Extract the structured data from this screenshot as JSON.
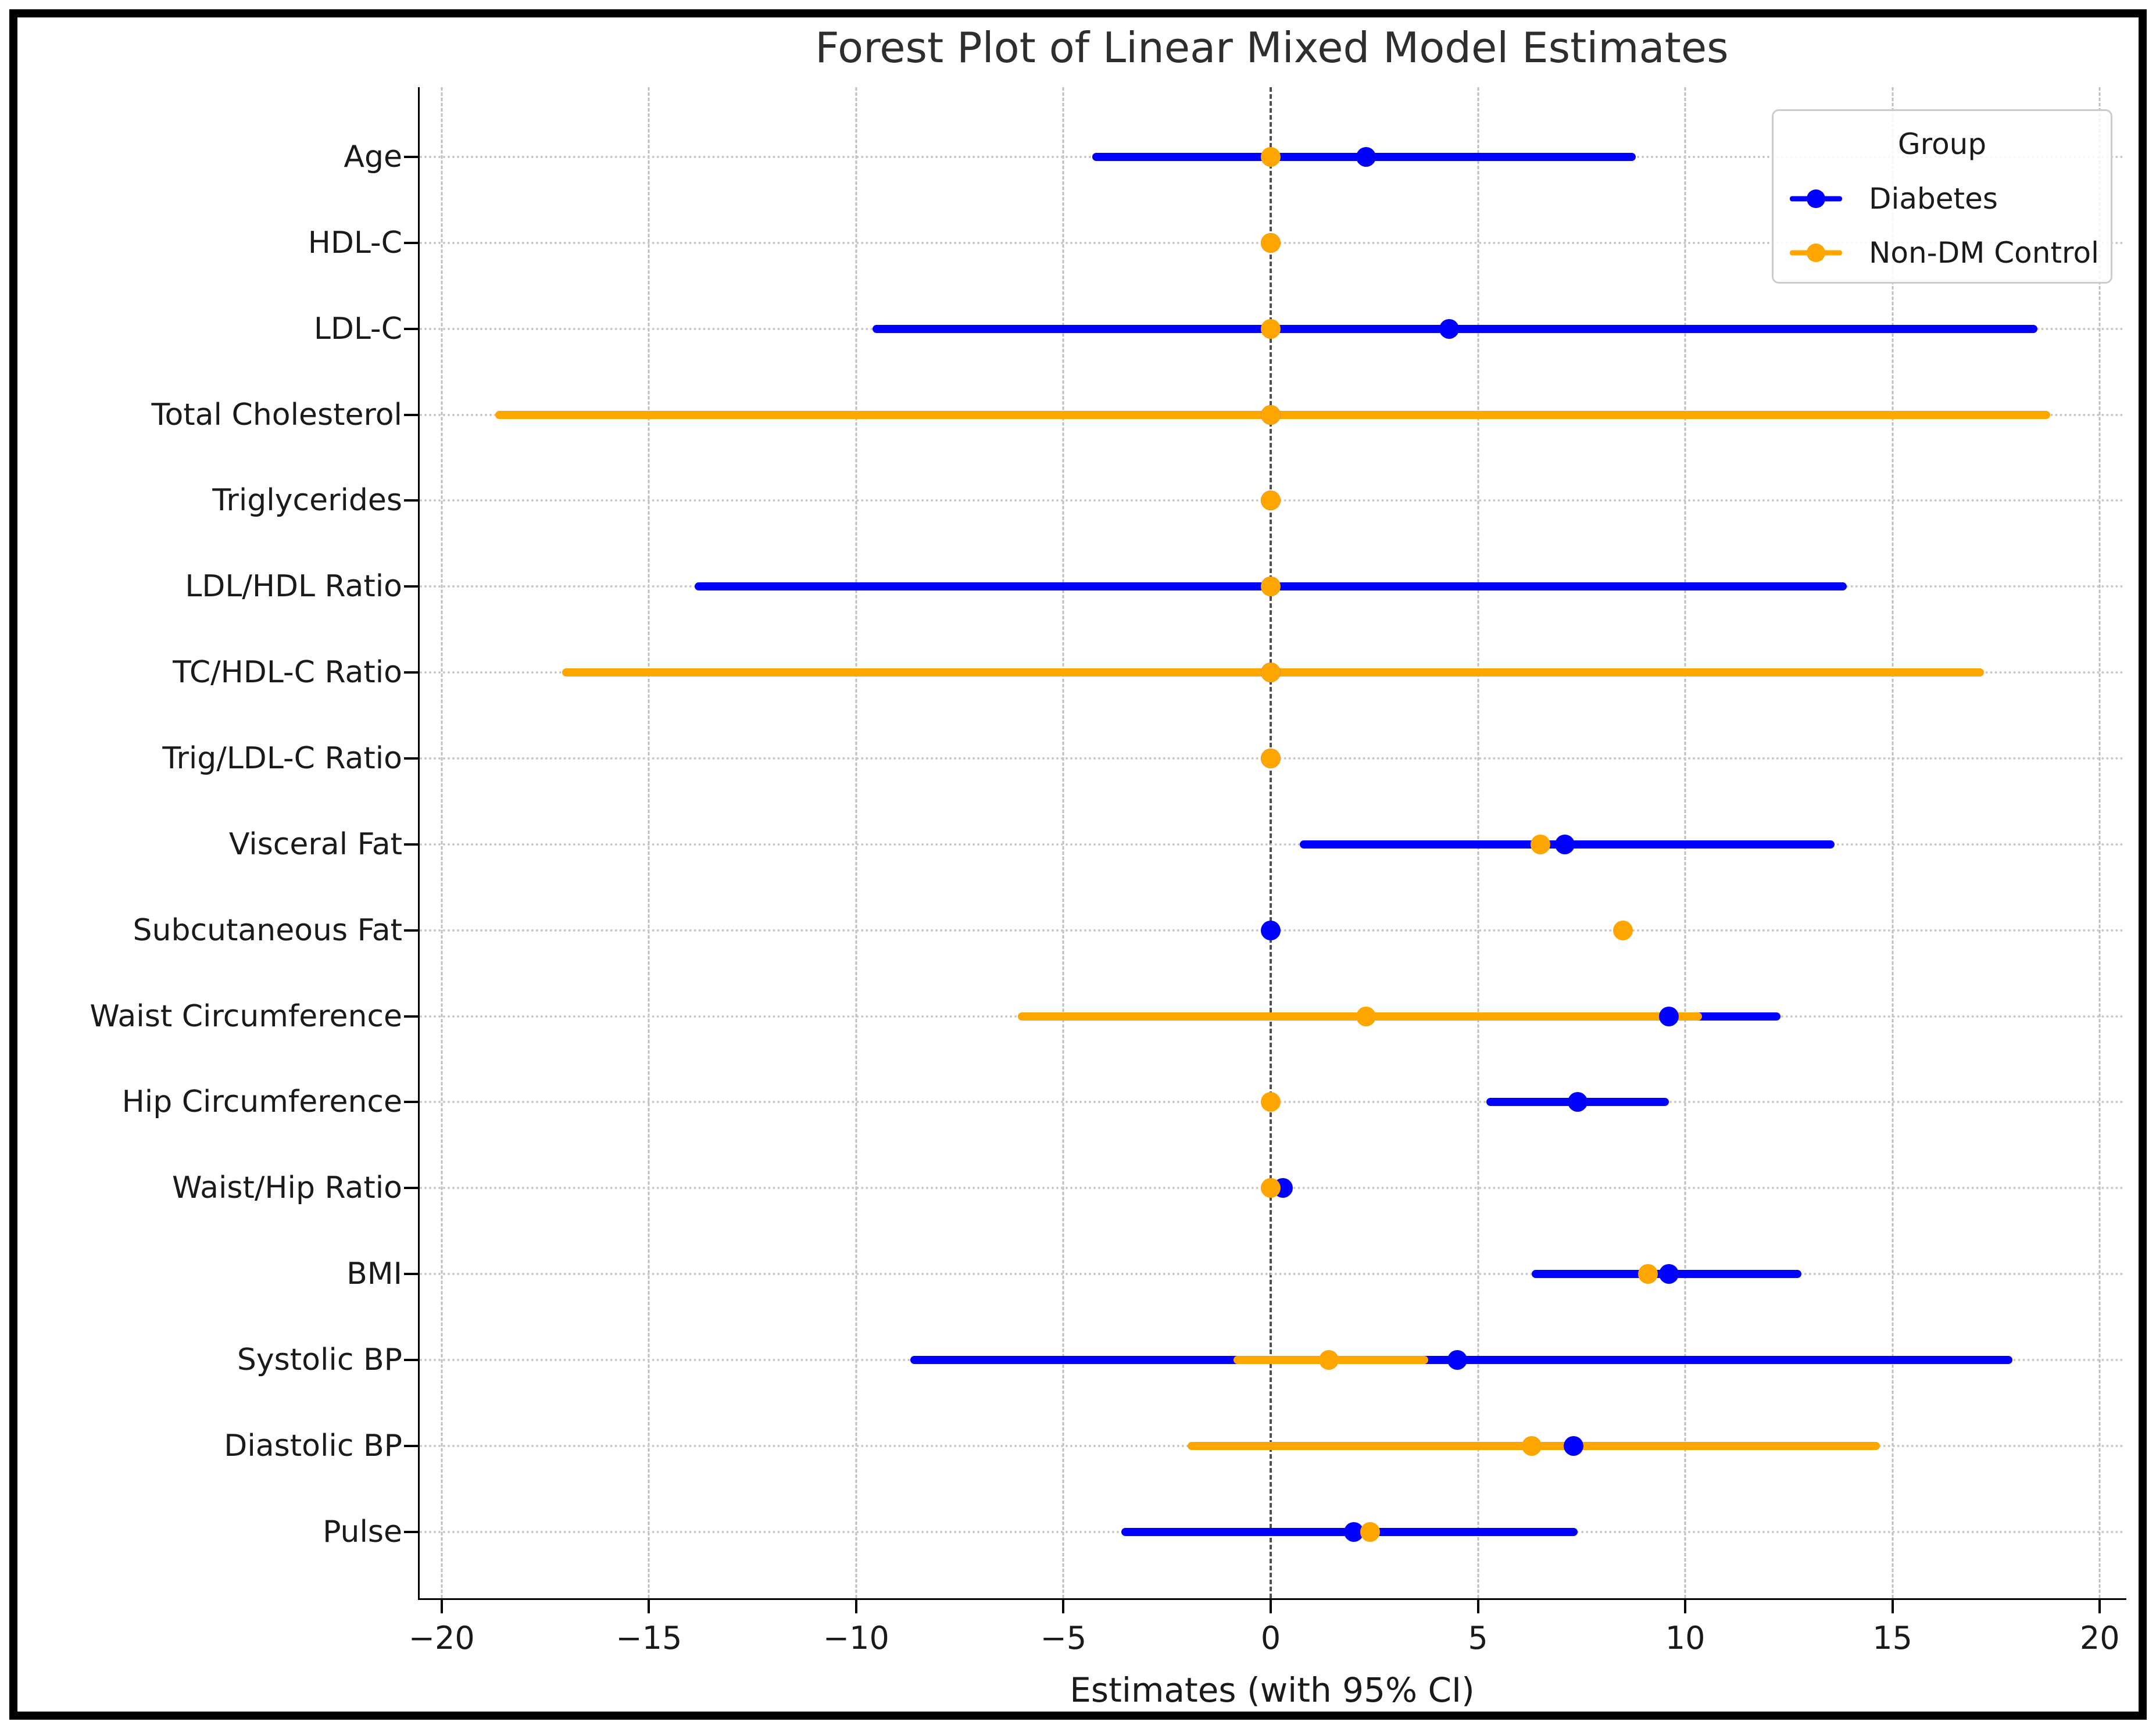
{
  "figure": {
    "title": "Forest Plot of Linear Mixed Model Estimates",
    "xlabel": "Estimates (with 95% CI)"
  },
  "chart_data": {
    "type": "forest",
    "title": "Forest Plot of Linear Mixed Model Estimates",
    "xlabel": "Estimates (with 95% CI)",
    "ylabel": "",
    "xlim": [
      -20.53,
      20.6
    ],
    "x_ticks": [
      -20,
      -15,
      -10,
      -5,
      0,
      5,
      10,
      15,
      20
    ],
    "x_tick_labels": [
      "−20",
      "−15",
      "−10",
      "−5",
      "0",
      "5",
      "10",
      "15",
      "20"
    ],
    "grid": "vertical-dashed, horizontal-dotted, zero-reference-line",
    "legend_title": "Group",
    "legend_position": "upper right",
    "categories": [
      "Age",
      "HDL-C",
      "LDL-C",
      "Total Cholesterol",
      "Triglycerides",
      "LDL/HDL Ratio",
      "TC/HDL-C Ratio",
      "Trig/LDL-C Ratio",
      "Visceral Fat",
      "Subcutaneous Fat",
      "Waist Circumference",
      "Hip Circumference",
      "Waist/Hip Ratio",
      "BMI",
      "Systolic BP",
      "Diastolic BP",
      "Pulse"
    ],
    "series": [
      {
        "name": "Diabetes",
        "color": "#0000ff",
        "points": [
          {
            "est": 2.3,
            "lo": -4.3,
            "hi": 8.8
          },
          {
            "est": 0.0,
            "lo": 0.0,
            "hi": 0.0
          },
          {
            "est": 4.3,
            "lo": -9.6,
            "hi": 18.5
          },
          {
            "est": 0.0,
            "lo": 0.0,
            "hi": 0.0
          },
          {
            "est": 0.0,
            "lo": 0.0,
            "hi": 0.0
          },
          {
            "est": 0.0,
            "lo": -13.9,
            "hi": 13.9
          },
          {
            "est": 0.0,
            "lo": 0.0,
            "hi": 0.0
          },
          {
            "est": 0.0,
            "lo": 0.0,
            "hi": 0.0
          },
          {
            "est": 7.1,
            "lo": 0.7,
            "hi": 13.6
          },
          {
            "est": 0.0,
            "lo": 0.0,
            "hi": 0.0
          },
          {
            "est": 9.6,
            "lo": 6.9,
            "hi": 12.3
          },
          {
            "est": 7.4,
            "lo": 5.2,
            "hi": 9.6
          },
          {
            "est": 0.3,
            "lo": 0.3,
            "hi": 0.3
          },
          {
            "est": 9.6,
            "lo": 6.3,
            "hi": 12.8
          },
          {
            "est": 4.5,
            "lo": -8.7,
            "hi": 17.9
          },
          {
            "est": 7.3,
            "lo": 3.5,
            "hi": 11.0
          },
          {
            "est": 2.0,
            "lo": -3.6,
            "hi": 7.4
          }
        ]
      },
      {
        "name": "Non-DM Control",
        "color": "#ffa500",
        "points": [
          {
            "est": 0.0,
            "lo": 0.0,
            "hi": 0.0
          },
          {
            "est": 0.0,
            "lo": 0.0,
            "hi": 0.0
          },
          {
            "est": 0.0,
            "lo": 0.0,
            "hi": 0.0
          },
          {
            "est": 0.0,
            "lo": -18.7,
            "hi": 18.8
          },
          {
            "est": 0.0,
            "lo": 0.0,
            "hi": 0.0
          },
          {
            "est": 0.0,
            "lo": 0.0,
            "hi": 0.0
          },
          {
            "est": 0.0,
            "lo": -17.1,
            "hi": 17.2
          },
          {
            "est": 0.0,
            "lo": 0.0,
            "hi": 0.0
          },
          {
            "est": 6.5,
            "lo": 6.5,
            "hi": 6.5
          },
          {
            "est": 8.5,
            "lo": 8.5,
            "hi": 8.5
          },
          {
            "est": 2.3,
            "lo": -6.1,
            "hi": 10.4
          },
          {
            "est": 0.0,
            "lo": 0.0,
            "hi": 0.0
          },
          {
            "est": 0.0,
            "lo": 0.0,
            "hi": 0.0
          },
          {
            "est": 9.1,
            "lo": 9.1,
            "hi": 9.1
          },
          {
            "est": 1.4,
            "lo": -0.9,
            "hi": 3.8
          },
          {
            "est": 6.3,
            "lo": -2.0,
            "hi": 14.7
          },
          {
            "est": 2.4,
            "lo": 2.4,
            "hi": 2.4
          }
        ]
      }
    ]
  }
}
